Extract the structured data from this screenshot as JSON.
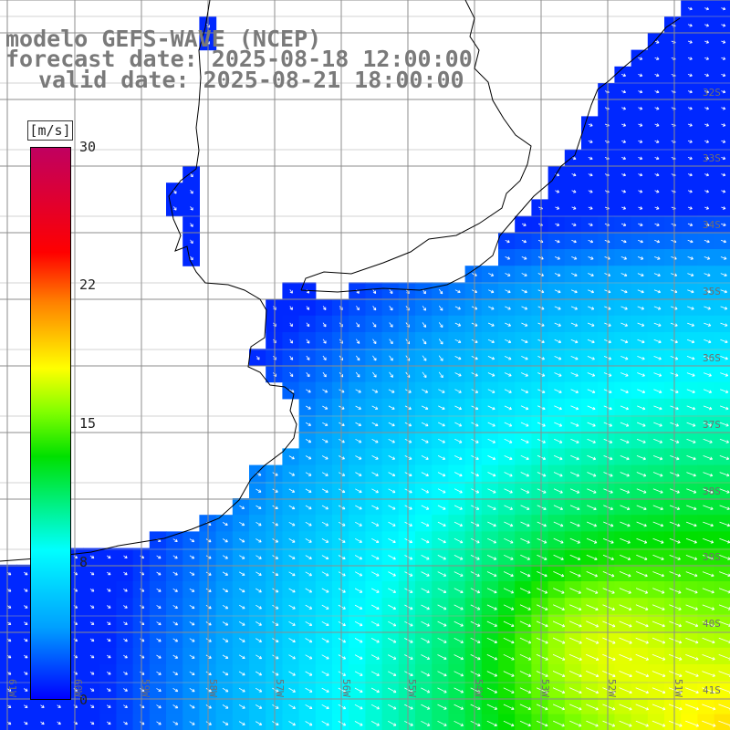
{
  "title": {
    "line1": "modelo GEFS-WAVE (NCEP)",
    "line2": "forecast date: 2025-08-18 12:00:00",
    "line3": "valid date: 2025-08-21 18:00:00"
  },
  "colorbar": {
    "unit": "[m/s]",
    "ticks": [
      "30",
      "22",
      "15",
      "8",
      "0"
    ],
    "tick_values": [
      30,
      22,
      15,
      8,
      0
    ],
    "range": [
      0,
      30
    ]
  },
  "lat_labels": [
    "32S",
    "33S",
    "34S",
    "35S",
    "36S",
    "37S",
    "38S",
    "39S",
    "40S",
    "41S"
  ],
  "lon_labels": [
    "61W",
    "60W",
    "59W",
    "58W",
    "57W",
    "56W",
    "55W",
    "54W",
    "53W",
    "52W",
    "51W"
  ],
  "colors": {
    "land": "#ffffff",
    "coast": "#000000",
    "grid": "#8c8c8c",
    "arrow": "#ffffff"
  }
}
